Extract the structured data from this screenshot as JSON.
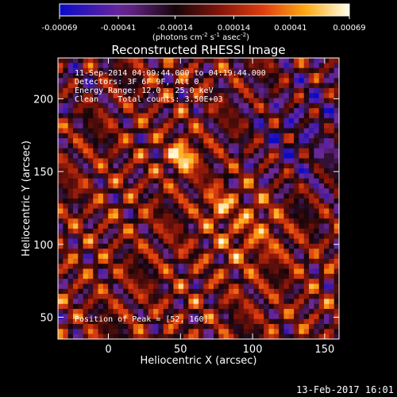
{
  "chart_data": {
    "type": "heatmap",
    "title": "Reconstructed RHESSI Image",
    "xlabel": "Heliocentric X (arcsec)",
    "ylabel": "Heliocentric Y (arcsec)",
    "xlim": [
      -35,
      160
    ],
    "ylim": [
      35,
      228
    ],
    "xticks": [
      0,
      50,
      100,
      150
    ],
    "yticks": [
      50,
      100,
      150,
      200
    ],
    "colorbar": {
      "min": -0.00069,
      "max": 0.00069,
      "ticks": [
        "-0.00069",
        "-0.00041",
        "-0.00014",
        "0.00014",
        "0.00041",
        "0.00069"
      ],
      "tick_values": [
        -0.00069,
        -0.00041,
        -0.00014,
        0.00014,
        0.00041,
        0.00069
      ],
      "unit_label": "(photons cm",
      "unit_sup1": "-2",
      "unit_mid": " s",
      "unit_sup2": "-1",
      "unit_mid2": " asec",
      "unit_sup3": "-2",
      "unit_end": ")"
    },
    "annotations": {
      "time_range": "11-Sep-2014 04:09:44.000 to 04:19:44.000",
      "detectors": "Detectors: 3F 6F 9F, Att 0",
      "energy": "Energy Range: 12.0 - 25.0 keV",
      "clean": "Clean    Total counts: 3.50E+03",
      "peak": "Position of Peak = [52, 160]"
    },
    "peak": [
      52,
      160
    ],
    "secondary_peak": [
      76,
      128
    ]
  },
  "footer": {
    "date": "13-Feb-2017 16:01"
  }
}
